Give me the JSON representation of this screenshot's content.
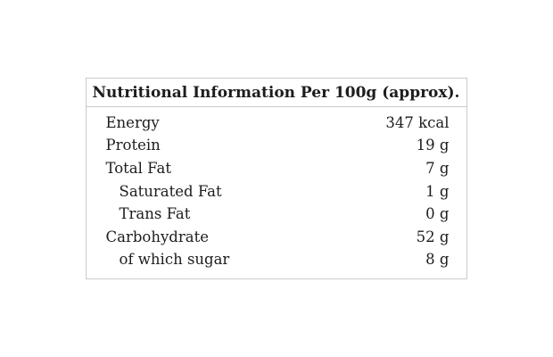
{
  "page": {
    "background": "#ffffff"
  },
  "nutrition_label": {
    "header": "Nutritional Information Per 100g (approx).",
    "rows": [
      {
        "label": "Energy",
        "value": "347 kcal",
        "indent": 1
      },
      {
        "label": "Protein",
        "value": "19 g",
        "indent": 1
      },
      {
        "label": "Total Fat",
        "value": "7 g",
        "indent": 1
      },
      {
        "label": "Saturated Fat",
        "value": "1 g",
        "indent": 2
      },
      {
        "label": "Trans Fat",
        "value": "0 g",
        "indent": 2
      },
      {
        "label": "Carbohydrate",
        "value": "52 g",
        "indent": 1
      },
      {
        "label": "of which sugar",
        "value": "8 g",
        "indent": 2
      }
    ],
    "colors": {
      "border": "#cbcbcb",
      "text": "#1d1d1d",
      "background": "#ffffff"
    }
  }
}
